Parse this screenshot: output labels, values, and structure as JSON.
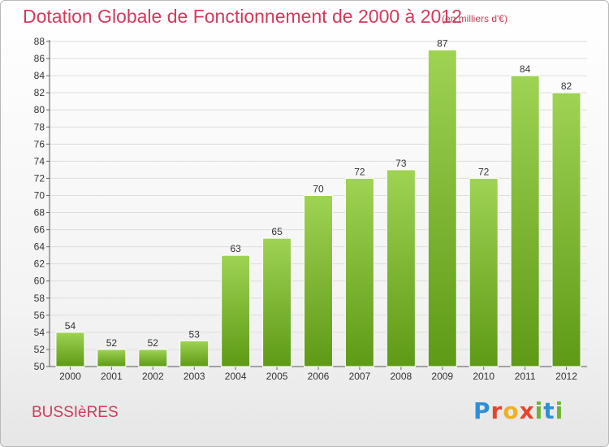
{
  "header": {
    "title": "Dotation Globale de Fonctionnement de 2000 à 2012",
    "subtitle": "(en milliers d'€)"
  },
  "footer": {
    "commune": "BUSSIèRES",
    "logo_text": "Proxiti"
  },
  "colors": {
    "bar_top": "#9fd353",
    "bar_bottom": "#5e9a16",
    "title": "#d23a5a",
    "gridline": "#dddddd"
  },
  "chart_data": {
    "type": "bar",
    "categories": [
      "2000",
      "2001",
      "2002",
      "2003",
      "2004",
      "2005",
      "2006",
      "2007",
      "2008",
      "2009",
      "2010",
      "2011",
      "2012"
    ],
    "values": [
      54,
      52,
      52,
      53,
      63,
      65,
      70,
      72,
      73,
      87,
      72,
      84,
      82
    ],
    "title": "Dotation Globale de Fonctionnement de 2000 à 2012",
    "ylabel": "",
    "xlabel": "",
    "ylim": [
      50,
      88
    ],
    "yticks": [
      50,
      52,
      54,
      56,
      58,
      60,
      62,
      64,
      66,
      68,
      70,
      72,
      74,
      76,
      78,
      80,
      82,
      84,
      86,
      88
    ],
    "grid": true,
    "data_labels": true
  }
}
